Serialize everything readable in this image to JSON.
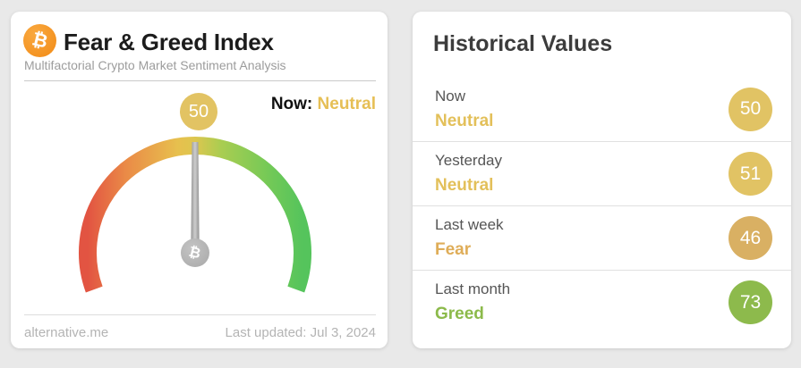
{
  "colors": {
    "page_background": "#e9e9e9",
    "panel_background": "#ffffff",
    "bitcoin_orange": "#f7931a",
    "neutral_gold": "#e3c05a",
    "fear_orange": "#dfad58",
    "greed_green": "#8cba4b",
    "badge_gold": "#e1c364",
    "badge_tan": "#d9b063",
    "badge_green": "#8dba4c",
    "needle_gray": "#a8a8a8",
    "arc_red_end": "#e25c43",
    "arc_green_end": "#55c45c"
  },
  "icons": {
    "bitcoin_symbol": "₿"
  },
  "index_card": {
    "title": "Fear & Greed Index",
    "subtitle": "Multifactorial Crypto Market Sentiment Analysis",
    "now_prefix": "Now:",
    "now_classification": "Neutral",
    "now_classification_color": "#e6bf55",
    "gauge": {
      "type": "gauge",
      "min": 0,
      "max": 100,
      "value": 50,
      "display_value": "50",
      "value_badge_color": "#e2c363",
      "classification": "Neutral"
    },
    "footer": {
      "source": "alternative.me",
      "last_updated": "Last updated: Jul 3, 2024"
    }
  },
  "history_card": {
    "title": "Historical Values",
    "rows": [
      {
        "period": "Now",
        "classification": "Neutral",
        "value": "50",
        "text_color": "#e3c05a",
        "badge_color": "#e1c364"
      },
      {
        "period": "Yesterday",
        "classification": "Neutral",
        "value": "51",
        "text_color": "#e3c05a",
        "badge_color": "#e1c364"
      },
      {
        "period": "Last week",
        "classification": "Fear",
        "value": "46",
        "text_color": "#dfad58",
        "badge_color": "#d9b063"
      },
      {
        "period": "Last month",
        "classification": "Greed",
        "value": "73",
        "text_color": "#8cba4b",
        "badge_color": "#8dba4c"
      }
    ]
  }
}
